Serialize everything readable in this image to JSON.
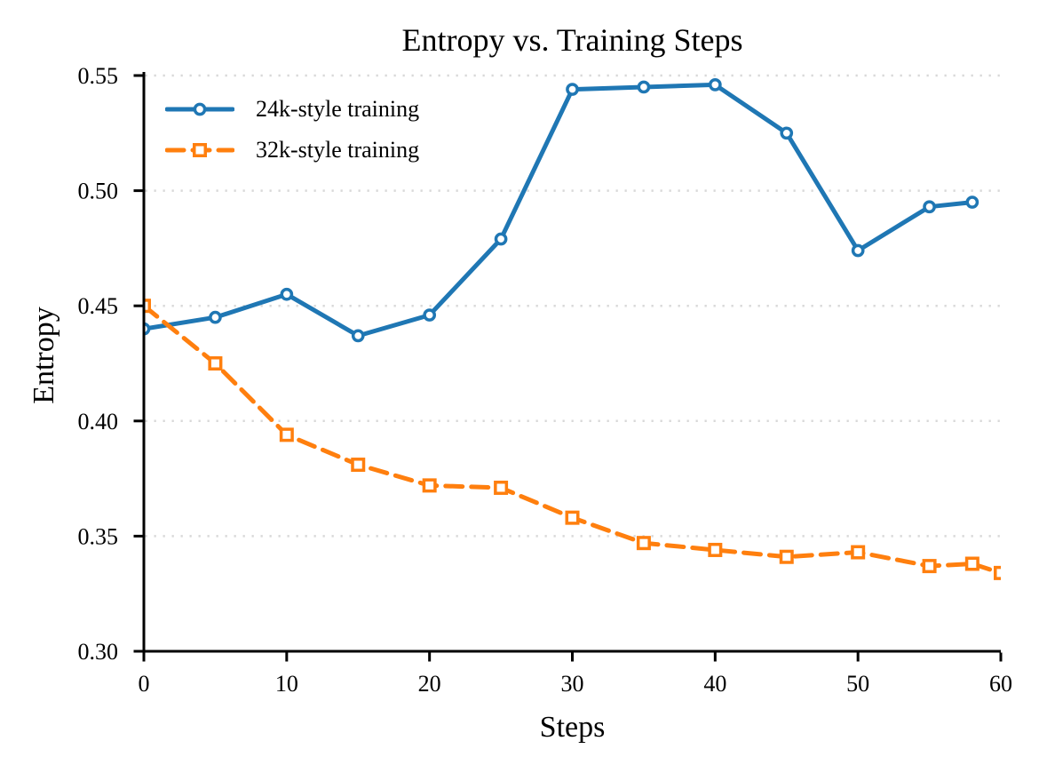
{
  "chart_data": {
    "type": "line",
    "title": "Entropy vs. Training Steps",
    "xlabel": "Steps",
    "ylabel": "Entropy",
    "xlim": [
      0,
      60
    ],
    "ylim": [
      0.3,
      0.55
    ],
    "x_ticks": [
      0,
      10,
      20,
      30,
      40,
      50,
      60
    ],
    "y_ticks": [
      0.3,
      0.35,
      0.4,
      0.45,
      0.5,
      0.55
    ],
    "grid": "horizontal dotted gridlines at y ticks",
    "grid_color": "#d8d8d8",
    "axis_color": "#000000",
    "legend_position": "upper-left, no frame",
    "series": [
      {
        "name": "24k-style training",
        "color": "#1f77b4",
        "line_style": "solid",
        "marker": "circle",
        "x": [
          0,
          5,
          10,
          15,
          20,
          25,
          30,
          35,
          40,
          45,
          50,
          55,
          58
        ],
        "y": [
          0.44,
          0.445,
          0.455,
          0.437,
          0.446,
          0.479,
          0.544,
          0.545,
          0.546,
          0.525,
          0.474,
          0.493,
          0.495
        ]
      },
      {
        "name": "32k-style training",
        "color": "#ff7f0e",
        "line_style": "dashed",
        "marker": "square",
        "x": [
          0,
          5,
          10,
          15,
          20,
          25,
          30,
          35,
          40,
          45,
          50,
          55,
          58,
          60
        ],
        "y": [
          0.45,
          0.425,
          0.394,
          0.381,
          0.372,
          0.371,
          0.358,
          0.347,
          0.344,
          0.341,
          0.343,
          0.337,
          0.338,
          0.334
        ]
      }
    ]
  }
}
